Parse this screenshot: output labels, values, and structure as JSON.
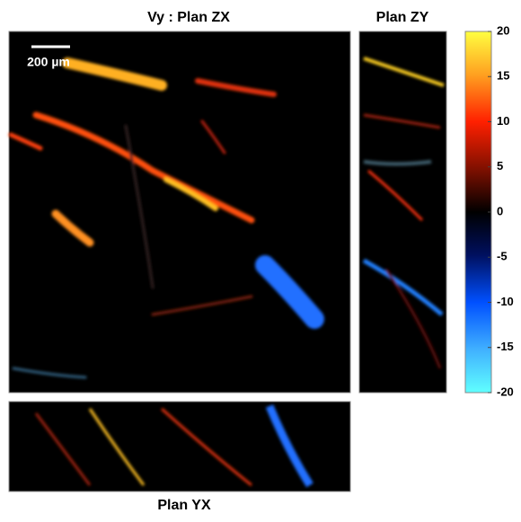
{
  "title": "Vy : Plan ZX",
  "scale_bar": "200 µm",
  "panels": {
    "zy_title": "Plan ZY",
    "yx_title": "Plan YX"
  },
  "colorbar": {
    "lim": [
      -20,
      20
    ],
    "ticks": [
      20,
      15,
      10,
      5,
      0,
      -5,
      -10,
      -15,
      -20
    ]
  }
}
